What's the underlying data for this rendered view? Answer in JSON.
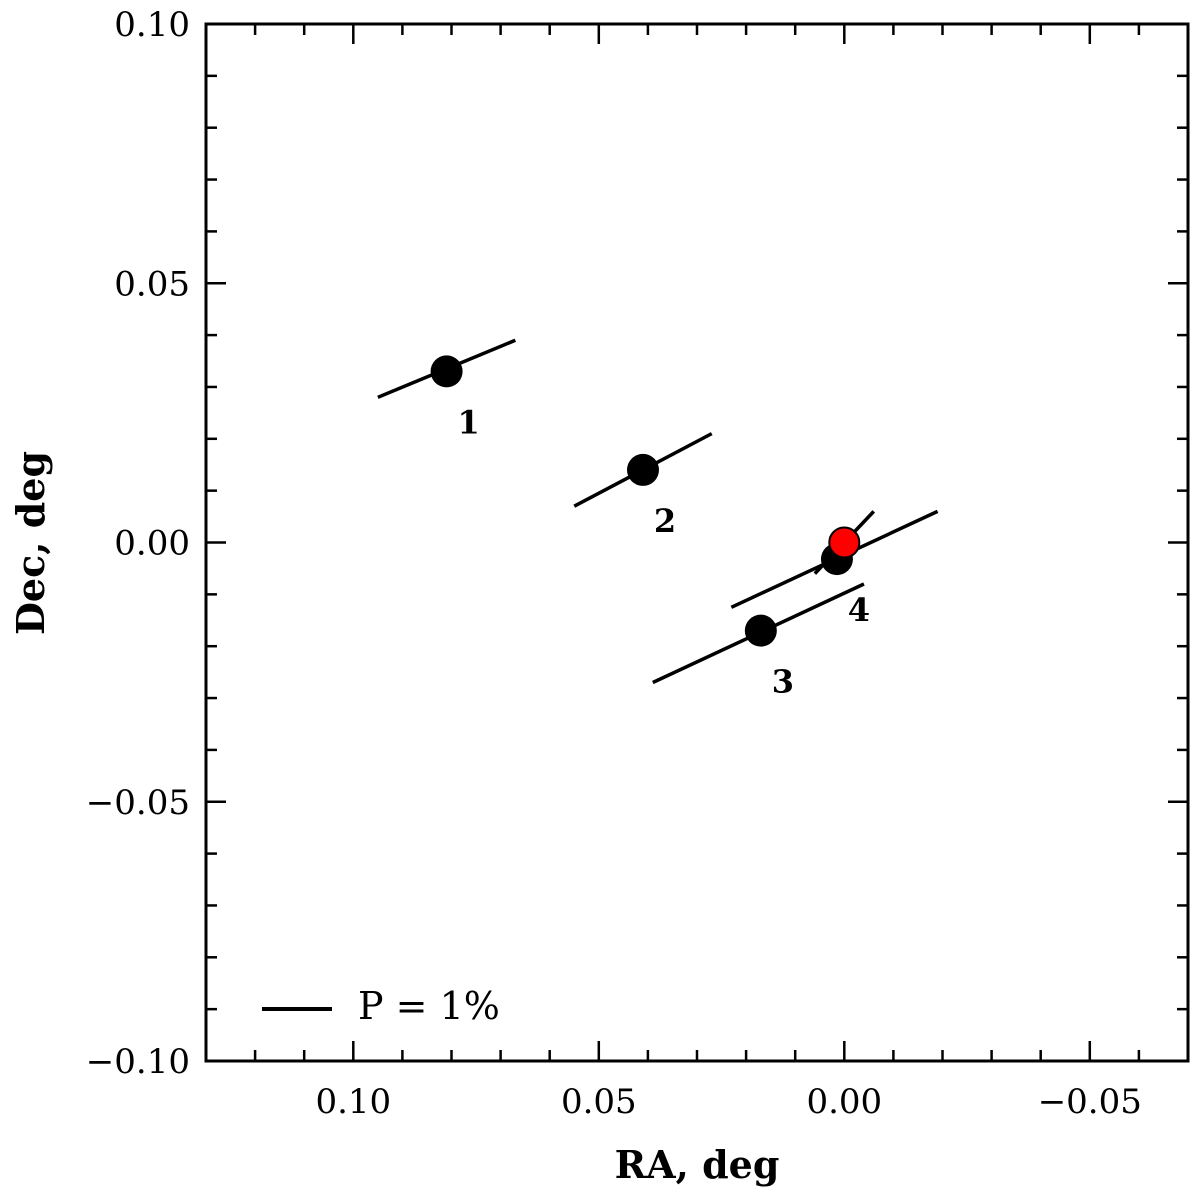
{
  "chart_data": {
    "type": "scatter",
    "title": "",
    "xlabel": "RA, deg",
    "ylabel": "Dec, deg",
    "xlim": [
      0.13,
      -0.07
    ],
    "ylim": [
      -0.1,
      0.1
    ],
    "x_reversed": true,
    "grid": false,
    "xticks": [
      {
        "value": 0.1,
        "label": "0.10"
      },
      {
        "value": 0.05,
        "label": "0.05"
      },
      {
        "value": 0.0,
        "label": "0.00"
      },
      {
        "value": -0.05,
        "label": "−0.05"
      }
    ],
    "yticks": [
      {
        "value": 0.1,
        "label": "0.10"
      },
      {
        "value": 0.05,
        "label": "0.05"
      },
      {
        "value": 0.0,
        "label": "0.00"
      },
      {
        "value": -0.05,
        "label": "−0.05"
      },
      {
        "value": -0.1,
        "label": "−0.10"
      }
    ],
    "points": [
      {
        "label": "1",
        "ra": 0.081,
        "dec": 0.033,
        "vector": {
          "ra1": 0.095,
          "dec1": 0.028,
          "ra2": 0.067,
          "dec2": 0.039
        }
      },
      {
        "label": "2",
        "ra": 0.041,
        "dec": 0.014,
        "vector": {
          "ra1": 0.055,
          "dec1": 0.007,
          "ra2": 0.027,
          "dec2": 0.021
        }
      },
      {
        "label": "3",
        "ra": 0.017,
        "dec": -0.017,
        "vector": {
          "ra1": 0.039,
          "dec1": -0.027,
          "ra2": -0.004,
          "dec2": -0.008
        }
      },
      {
        "label": "4",
        "ra": 0.0015,
        "dec": -0.0032,
        "vector": {
          "ra1": 0.023,
          "dec1": -0.0125,
          "ra2": -0.019,
          "dec2": 0.006
        }
      }
    ],
    "reference": {
      "ra": 0.0,
      "dec": 0.0,
      "color": "#ff0000",
      "vector": {
        "ra1": 0.006,
        "dec1": -0.006,
        "ra2": -0.006,
        "dec2": 0.006
      }
    },
    "legend": {
      "label": "P = 1%",
      "position": "bottom-left"
    },
    "point_color": "#000000"
  }
}
